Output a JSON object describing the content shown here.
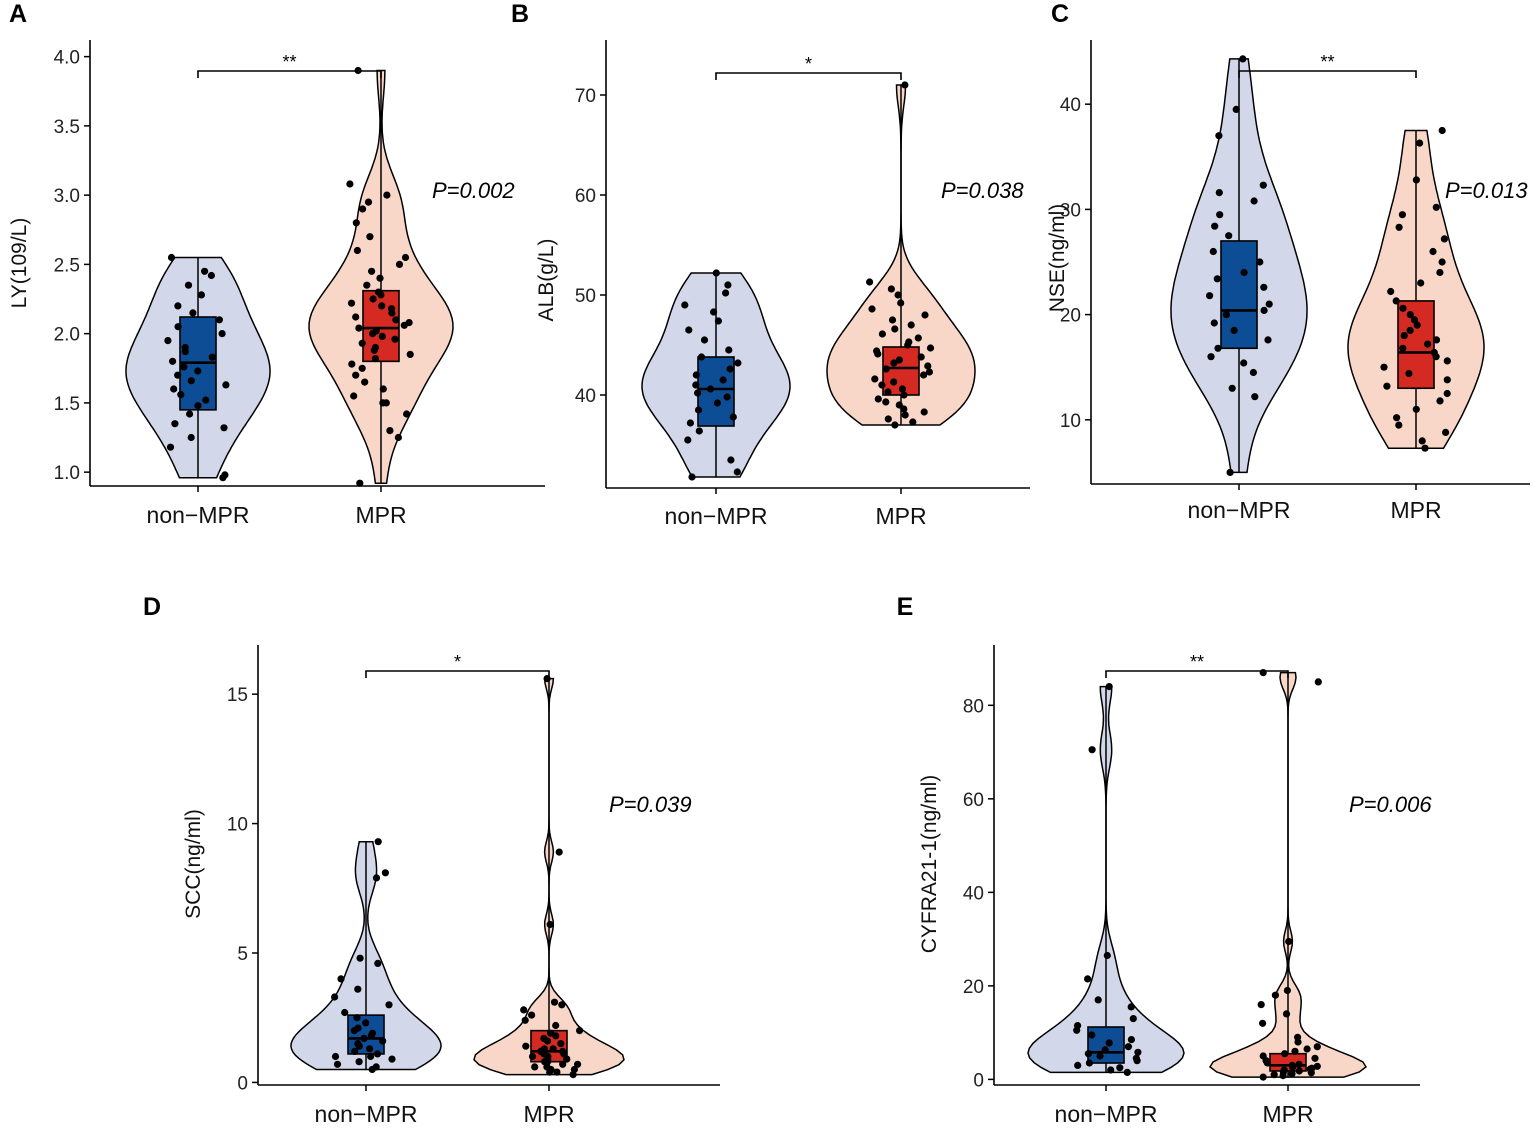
{
  "figure": {
    "groups": [
      "non−MPR",
      "MPR"
    ],
    "colors": {
      "violin_nonmpr": "#d3d7ea",
      "violin_mpr": "#f8d7c9",
      "box_nonmpr": "#0d4d96",
      "box_mpr": "#d42a22",
      "point": "#000000",
      "axis": "#000000"
    }
  },
  "chart_data": [
    {
      "panel": "A",
      "type": "violin-box",
      "ylabel": "LY(109/L)",
      "ylim": [
        0.9,
        4.12
      ],
      "yticks": [
        1.0,
        1.5,
        2.0,
        2.5,
        3.0,
        3.5,
        4.0
      ],
      "tick_labels": [
        "1.0",
        "1.5",
        "2.0",
        "2.5",
        "3.0",
        "3.5",
        "4.0"
      ],
      "categories": [
        "non−MPR",
        "MPR"
      ],
      "p_value": "P=0.002",
      "significance": "**",
      "series": [
        {
          "name": "non−MPR",
          "q1": 1.45,
          "median": 1.79,
          "q3": 2.12,
          "whisker_low": 0.96,
          "whisker_high": 2.55,
          "points": [
            0.96,
            0.98,
            1.18,
            1.25,
            1.32,
            1.35,
            1.42,
            1.48,
            1.52,
            1.56,
            1.6,
            1.63,
            1.66,
            1.7,
            1.73,
            1.76,
            1.8,
            1.83,
            1.87,
            1.9,
            1.95,
            2.0,
            2.05,
            2.1,
            2.15,
            2.2,
            2.28,
            2.35,
            2.42,
            2.45,
            2.55
          ]
        },
        {
          "name": "MPR",
          "q1": 1.8,
          "median": 2.04,
          "q3": 2.31,
          "whisker_low": 1.25,
          "whisker_high": 2.97,
          "points": [
            0.92,
            1.25,
            1.3,
            1.42,
            1.5,
            1.5,
            1.55,
            1.6,
            1.65,
            1.7,
            1.75,
            1.78,
            1.82,
            1.85,
            1.88,
            1.9,
            1.93,
            1.96,
            1.98,
            2.0,
            2.02,
            2.04,
            2.06,
            2.08,
            2.1,
            2.12,
            2.15,
            2.18,
            2.2,
            2.22,
            2.25,
            2.28,
            2.3,
            2.35,
            2.4,
            2.45,
            2.5,
            2.55,
            2.6,
            2.7,
            2.8,
            2.9,
            2.95,
            3.0,
            3.08,
            3.9
          ]
        }
      ]
    },
    {
      "panel": "B",
      "type": "violin-box",
      "ylabel": "ALB(g/L)",
      "ylim": [
        30.7,
        75.5
      ],
      "yticks": [
        40,
        50,
        60,
        70
      ],
      "tick_labels": [
        "40",
        "50",
        "60",
        "70"
      ],
      "categories": [
        "non−MPR",
        "MPR"
      ],
      "p_value": "P=0.038",
      "significance": "*",
      "series": [
        {
          "name": "non−MPR",
          "q1": 36.9,
          "median": 40.6,
          "q3": 43.8,
          "whisker_low": 31.8,
          "whisker_high": 52.2,
          "points": [
            31.8,
            32.3,
            33.5,
            35.5,
            36.4,
            37.2,
            37.8,
            38.5,
            39.2,
            39.8,
            40.2,
            40.6,
            41.0,
            41.5,
            42.0,
            42.6,
            43.2,
            43.8,
            44.5,
            45.5,
            46.5,
            47.4,
            48.3,
            49.0,
            50.2,
            51.0,
            52.2
          ]
        },
        {
          "name": "MPR",
          "q1": 40.0,
          "median": 42.7,
          "q3": 44.8,
          "whisker_low": 37.0,
          "whisker_high": 51.3,
          "points": [
            37.0,
            37.3,
            37.6,
            38.0,
            38.3,
            38.6,
            39.0,
            39.3,
            39.6,
            40.0,
            40.3,
            40.6,
            41.0,
            41.3,
            41.6,
            42.0,
            42.3,
            42.6,
            42.9,
            43.2,
            43.5,
            43.8,
            44.1,
            44.4,
            44.7,
            45.0,
            45.3,
            45.7,
            46.1,
            46.6,
            47.0,
            47.5,
            48.0,
            48.6,
            49.2,
            50.0,
            50.6,
            51.3,
            71.0
          ]
        }
      ]
    },
    {
      "panel": "C",
      "type": "violin-box",
      "ylabel": "NSE(ng/ml)",
      "ylim": [
        3.9,
        46.1
      ],
      "yticks": [
        10,
        20,
        30,
        40
      ],
      "tick_labels": [
        "10",
        "20",
        "30",
        "40"
      ],
      "categories": [
        "non−MPR",
        "MPR"
      ],
      "p_value": "P=0.013",
      "significance": "**",
      "series": [
        {
          "name": "non−MPR",
          "q1": 16.8,
          "median": 20.4,
          "q3": 27.0,
          "whisker_low": 5.0,
          "whisker_high": 44.3,
          "points": [
            5.0,
            12.2,
            13.0,
            14.5,
            15.4,
            16.0,
            16.8,
            17.6,
            18.5,
            19.2,
            20.0,
            20.4,
            21.0,
            21.8,
            22.6,
            23.4,
            24.0,
            25.0,
            26.0,
            27.5,
            28.4,
            29.5,
            30.8,
            31.6,
            32.3,
            37.0,
            39.5,
            44.3
          ]
        },
        {
          "name": "MPR",
          "q1": 13.0,
          "median": 16.4,
          "q3": 21.3,
          "whisker_low": 7.3,
          "whisker_high": 37.5,
          "points": [
            7.3,
            8.0,
            8.8,
            9.5,
            10.2,
            11.0,
            11.8,
            12.5,
            13.2,
            13.8,
            14.4,
            15.0,
            15.6,
            16.0,
            16.4,
            16.8,
            17.2,
            17.6,
            18.0,
            18.5,
            19.0,
            19.5,
            20.0,
            20.6,
            21.3,
            22.2,
            23.0,
            24.0,
            25.0,
            26.0,
            27.2,
            28.3,
            29.5,
            30.2,
            32.8,
            36.3,
            37.5
          ]
        }
      ]
    },
    {
      "panel": "D",
      "type": "violin-box",
      "ylabel": "SCC(ng/ml)",
      "ylim": [
        -0.1,
        16.9
      ],
      "yticks": [
        0,
        5,
        10,
        15
      ],
      "tick_labels": [
        "0",
        "5",
        "10",
        "15"
      ],
      "categories": [
        "non−MPR",
        "MPR"
      ],
      "p_value": "P=0.039",
      "significance": "*",
      "series": [
        {
          "name": "non−MPR",
          "q1": 1.1,
          "median": 1.7,
          "q3": 2.6,
          "whisker_low": 0.5,
          "whisker_high": 4.7,
          "points": [
            0.5,
            0.6,
            0.7,
            0.8,
            0.9,
            1.0,
            1.0,
            1.1,
            1.2,
            1.3,
            1.4,
            1.5,
            1.6,
            1.7,
            1.8,
            1.9,
            2.0,
            2.1,
            2.3,
            2.5,
            2.7,
            3.0,
            3.3,
            3.6,
            4.0,
            4.6,
            4.8,
            7.9,
            8.1,
            9.3
          ]
        },
        {
          "name": "MPR",
          "q1": 0.8,
          "median": 1.2,
          "q3": 2.0,
          "whisker_low": 0.3,
          "whisker_high": 3.0,
          "points": [
            0.3,
            0.4,
            0.4,
            0.5,
            0.5,
            0.6,
            0.6,
            0.7,
            0.7,
            0.8,
            0.8,
            0.9,
            0.9,
            1.0,
            1.0,
            1.1,
            1.1,
            1.2,
            1.2,
            1.3,
            1.3,
            1.4,
            1.5,
            1.6,
            1.7,
            1.8,
            1.9,
            2.0,
            2.2,
            2.4,
            2.6,
            2.8,
            3.0,
            3.1,
            6.1,
            8.9,
            15.6
          ]
        }
      ]
    },
    {
      "panel": "E",
      "type": "violin-box",
      "ylabel": "CYFRA21-1(ng/ml)",
      "ylim": [
        -1.2,
        92.9
      ],
      "yticks": [
        0,
        20,
        40,
        60,
        80
      ],
      "tick_labels": [
        "0",
        "20",
        "40",
        "60",
        "80"
      ],
      "categories": [
        "non−MPR",
        "MPR"
      ],
      "p_value": "P=0.006",
      "significance": "**",
      "series": [
        {
          "name": "non−MPR",
          "q1": 3.5,
          "median": 5.8,
          "q3": 11.2,
          "whisker_low": 1.5,
          "whisker_high": 22.0,
          "points": [
            1.5,
            2.0,
            2.5,
            3.0,
            3.5,
            4.0,
            4.5,
            5.0,
            5.5,
            5.8,
            6.3,
            7.0,
            7.8,
            8.5,
            9.5,
            10.5,
            11.5,
            13.0,
            15.5,
            17.0,
            21.5,
            26.5,
            70.5,
            84.0
          ]
        },
        {
          "name": "MPR",
          "q1": 1.8,
          "median": 3.0,
          "q3": 5.5,
          "whisker_low": 0.5,
          "whisker_high": 9.0,
          "points": [
            0.5,
            0.8,
            1.0,
            1.2,
            1.4,
            1.6,
            1.8,
            2.0,
            2.2,
            2.4,
            2.6,
            2.8,
            3.0,
            3.2,
            3.5,
            3.8,
            4.0,
            4.5,
            5.0,
            5.5,
            6.0,
            6.5,
            7.0,
            8.0,
            9.0,
            12.0,
            14.0,
            16.0,
            18.0,
            19.0,
            29.5,
            85.0,
            87.0
          ]
        }
      ]
    }
  ]
}
